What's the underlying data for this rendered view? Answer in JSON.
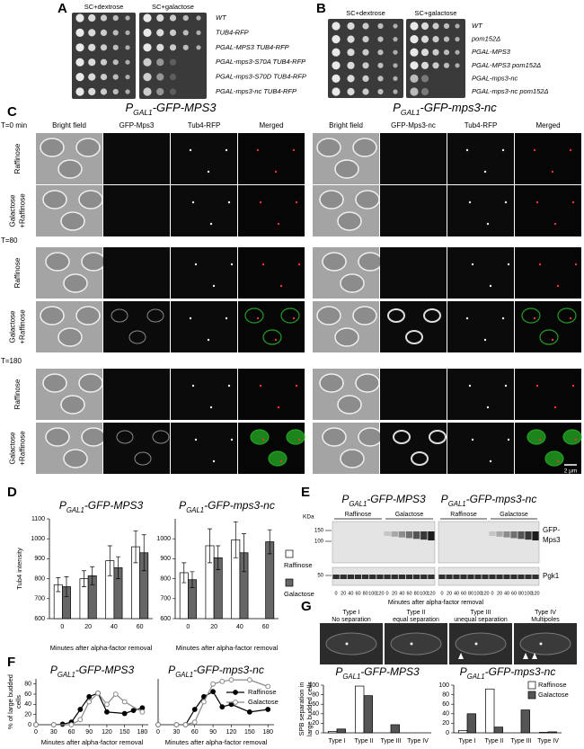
{
  "panel_labels": [
    "A",
    "B",
    "C",
    "D",
    "E",
    "F",
    "G"
  ],
  "plates_a": {
    "columns": [
      "SC+dextrose",
      "SC+galactose"
    ],
    "strains": [
      "WT",
      "TUB4-RFP",
      "PGAL-MPS3 TUB4-RFP",
      "PGAL-mps3-S70A TUB4-RFP",
      "PGAL-mps3-S70D TUB4-RFP",
      "PGAL-mps3-nc TUB4-RFP"
    ]
  },
  "plates_b": {
    "columns": [
      "SC+dextrose",
      "SC+galactose"
    ],
    "strains": [
      "WT",
      "pom152Δ",
      "PGAL-MPS3",
      "PGAL-MPS3 pom152Δ",
      "PGAL-mps3-nc",
      "PGAL-mps3-nc pom152Δ"
    ]
  },
  "microscopy": {
    "panels": [
      {
        "title_parts": [
          "P",
          "GAL1",
          "-GFP-MPS3"
        ],
        "columns": [
          "Bright field",
          "GFP-Mps3",
          "Tub4-RFP",
          "Merged"
        ]
      },
      {
        "title_parts": [
          "P",
          "GAL1",
          "-GFP-mps3-nc"
        ],
        "columns": [
          "Bright field",
          "GFP-Mps3-nc",
          "Tub4-RFP",
          "Merged"
        ]
      }
    ],
    "timepoints": [
      "T=0 min",
      "T=80",
      "T=180"
    ],
    "conditions": [
      [
        "Raffinose"
      ],
      [
        "Galactose",
        "+Raffinose"
      ]
    ],
    "scale_bar": "2 μm"
  },
  "blot": {
    "panels": [
      {
        "title_parts": [
          "P",
          "GAL1",
          "-GFP-MPS3"
        ],
        "conditions": [
          "Raffinose",
          "Galactose"
        ]
      },
      {
        "title_parts": [
          "P",
          "GAL1",
          "-GFP-mps3-nc"
        ],
        "conditions": [
          "Raffinose",
          "Galactose"
        ]
      }
    ],
    "kda": "KDa",
    "markers": [
      150,
      100,
      50
    ],
    "bands": [
      [
        "GFP-",
        "Mps3"
      ],
      [
        "Pgk1"
      ]
    ],
    "lanes": [
      0,
      20,
      40,
      60,
      80,
      100,
      120
    ],
    "xlabel": "Minutes after alpha-factor removal"
  },
  "spb_types": [
    [
      "Type I",
      "No separation"
    ],
    [
      "Type II",
      "equal separation"
    ],
    [
      "Type III",
      "unequal separation"
    ],
    [
      "Type IV",
      "Multipoles"
    ]
  ],
  "chart_data": [
    {
      "type": "bar",
      "title_parts": [
        "P",
        "GAL1",
        "-GFP-MPS3"
      ],
      "ylabel": [
        "Tub4 intensity"
      ],
      "xlabel": "Minutes after alpha-factor removal",
      "categories": [
        0,
        20,
        40,
        60
      ],
      "ylim": [
        600,
        1100
      ],
      "yticks": [
        600,
        700,
        800,
        900,
        1000,
        1100
      ],
      "series": [
        {
          "color": "#ffffff",
          "values": [
            770,
            800,
            890,
            960
          ],
          "errors": [
            35,
            40,
            75,
            80
          ]
        },
        {
          "color": "#666666",
          "values": [
            760,
            815,
            855,
            930
          ],
          "errors": [
            50,
            45,
            55,
            90
          ]
        }
      ]
    },
    {
      "type": "bar",
      "title_parts": [
        "P",
        "GAL1",
        "-GFP-mps3-nc"
      ],
      "xlabel": "Minutes after alpha-factor removal",
      "categories": [
        0,
        20,
        40,
        60
      ],
      "ylim": [
        600,
        1100
      ],
      "yticks": [
        600,
        700,
        800,
        900,
        1000
      ],
      "legend": "right",
      "series": [
        {
          "name": "Raffinose",
          "color": "#ffffff",
          "values": [
            830,
            965,
            995,
            null
          ],
          "errors": [
            50,
            85,
            90,
            null
          ]
        },
        {
          "name": "Galactose",
          "color": "#666666",
          "values": [
            795,
            905,
            930,
            985
          ],
          "errors": [
            40,
            60,
            95,
            60
          ]
        }
      ]
    },
    {
      "type": "line",
      "title_parts": [
        "P",
        "GAL1",
        "-GFP-MPS3"
      ],
      "ylabel": [
        "% of large budded",
        "cells"
      ],
      "xlabel": "Minutes after alpha-factor removal",
      "xlim": [
        0,
        190
      ],
      "xticks": [
        0,
        30,
        60,
        90,
        120,
        150,
        180
      ],
      "ylim": [
        0,
        90
      ],
      "yticks": [
        0,
        20,
        40,
        60,
        80
      ],
      "series": [
        {
          "color": "#000000",
          "marker_fill": "#000000",
          "x": [
            0,
            30,
            45,
            60,
            75,
            90,
            105,
            120,
            150,
            165,
            180
          ],
          "values": [
            0,
            0,
            1,
            5,
            30,
            55,
            62,
            25,
            22,
            28,
            33
          ]
        },
        {
          "color": "#888888",
          "marker_fill": "#ffffff",
          "x": [
            0,
            30,
            60,
            75,
            90,
            105,
            120,
            135,
            150,
            180
          ],
          "values": [
            0,
            0,
            0,
            10,
            45,
            62,
            40,
            60,
            45,
            25
          ]
        }
      ]
    },
    {
      "type": "line",
      "title_parts": [
        "P",
        "GAL1",
        "-GFP-mps3-nc"
      ],
      "xlabel": "Minutes after alpha-factor removal",
      "xlim": [
        0,
        190
      ],
      "xticks": [
        0,
        30,
        60,
        90,
        120,
        150,
        180
      ],
      "ylim": [
        0,
        90
      ],
      "legend": "upper right",
      "series": [
        {
          "name": "Raffinose",
          "color": "#000000",
          "marker_fill": "#000000",
          "x": [
            0,
            30,
            45,
            60,
            75,
            90,
            105,
            120,
            150,
            180
          ],
          "values": [
            0,
            0,
            0,
            30,
            55,
            65,
            35,
            40,
            25,
            30
          ]
        },
        {
          "name": "Galactose",
          "color": "#888888",
          "marker_fill": "#ffffff",
          "x": [
            0,
            30,
            45,
            60,
            75,
            90,
            105,
            120,
            150,
            180
          ],
          "values": [
            0,
            0,
            0,
            5,
            45,
            80,
            85,
            88,
            88,
            75
          ]
        }
      ]
    },
    {
      "type": "bar",
      "title_parts": [
        "P",
        "GAL1",
        "-GFP-MPS3"
      ],
      "ylabel": [
        "SPB separation in",
        "large budded cells"
      ],
      "categories": [
        "Type I",
        "Type II",
        "Type III",
        "Type IV"
      ],
      "ylim": [
        0,
        100
      ],
      "yticks": [
        0,
        20,
        40,
        60,
        80,
        100
      ],
      "series": [
        {
          "color": "#ffffff",
          "values": [
            3,
            98,
            0,
            0
          ]
        },
        {
          "color": "#555555",
          "values": [
            8,
            78,
            17,
            0
          ]
        }
      ]
    },
    {
      "type": "bar",
      "title_parts": [
        "P",
        "GAL1",
        "-GFP-mps3-nc"
      ],
      "categories": [
        "Type I",
        "Type II",
        "Type III",
        "Type IV"
      ],
      "ylim": [
        0,
        100
      ],
      "yticks": [
        0,
        20,
        40,
        60,
        80,
        100
      ],
      "legend": "upper right",
      "series": [
        {
          "name": "Raffinose",
          "color": "#ffffff",
          "values": [
            5,
            92,
            0,
            1
          ]
        },
        {
          "name": "Galactose",
          "color": "#555555",
          "values": [
            40,
            12,
            48,
            2
          ]
        }
      ]
    }
  ]
}
